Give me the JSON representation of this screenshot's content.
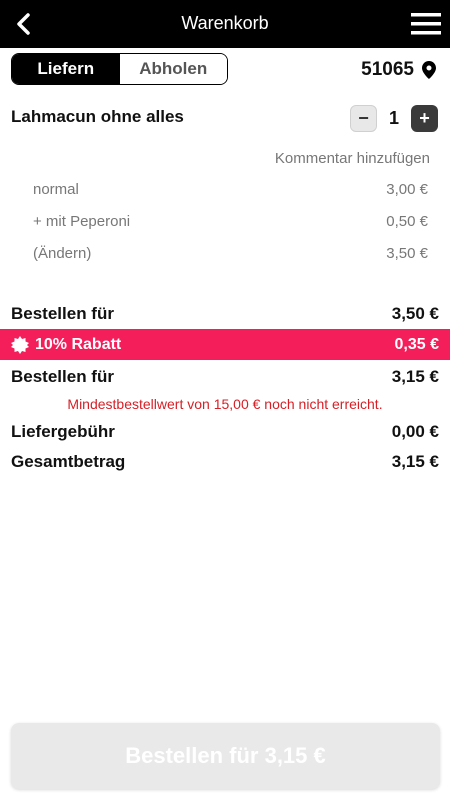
{
  "header": {
    "title": "Warenkorb",
    "back_icon": "chevron-left-icon",
    "menu_icon": "hamburger-menu-icon"
  },
  "delivery_toggle": {
    "options": [
      "Liefern",
      "Abholen"
    ],
    "selected": "Liefern"
  },
  "location": {
    "zip": "51065",
    "icon": "map-pin-icon"
  },
  "cart_item": {
    "name": "Lahmacun ohne alles",
    "quantity": "1",
    "minus_label": "−",
    "plus_label": "+",
    "comment_link": "Kommentar hinzufügen",
    "options": [
      {
        "label": "normal",
        "price": "3,00 €"
      },
      {
        "label": "+ mit Peperoni",
        "price": "0,50 €"
      },
      {
        "label": "(Ändern)",
        "price": "3,50 €"
      }
    ]
  },
  "summary": {
    "subtotal_label": "Bestellen für",
    "subtotal_value": "3,50 €",
    "discount_label": "10% Rabatt",
    "discount_value": "0,35 €",
    "discounted_label": "Bestellen für",
    "discounted_value": "3,15 €",
    "warning": "Mindestbestellwert von 15,00 € noch nicht erreicht.",
    "delivery_fee_label": "Liefergebühr",
    "delivery_fee_value": "0,00 €",
    "total_label": "Gesamtbetrag",
    "total_value": "3,15 €"
  },
  "order_button": {
    "label": "Bestellen für 3,15 €"
  },
  "colors": {
    "header_bg": "#000000",
    "discount_bg": "#f41f5a",
    "warning_text": "#d62027",
    "disabled_button": "#e9e9e9"
  }
}
